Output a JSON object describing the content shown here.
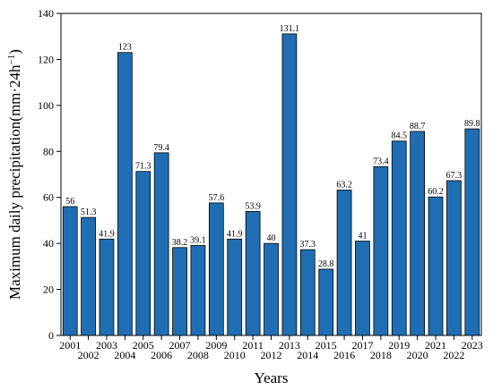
{
  "chart_data": {
    "type": "bar",
    "xlabel": "Years",
    "ylabel": "Maximum daily precipitation(mm·24h",
    "ylabel_sup": "−1",
    "ylabel_close": ")",
    "ylim": [
      0,
      140
    ],
    "yticks": [
      0,
      20,
      40,
      60,
      80,
      100,
      120,
      140
    ],
    "grid": false,
    "bar_color": "#1f6eb4",
    "categories": [
      "2001",
      "2002",
      "2003",
      "2004",
      "2005",
      "2006",
      "2007",
      "2008",
      "2009",
      "2010",
      "2011",
      "2012",
      "2013",
      "2014",
      "2015",
      "2016",
      "2017",
      "2018",
      "2019",
      "2020",
      "2021",
      "2022",
      "2023"
    ],
    "values": [
      56,
      51.3,
      41.9,
      123,
      71.3,
      79.4,
      38.2,
      39.1,
      57.6,
      41.9,
      53.9,
      40,
      131.1,
      37.3,
      28.8,
      63.2,
      41,
      73.4,
      84.5,
      88.7,
      60.2,
      67.3,
      89.8
    ],
    "value_labels": [
      "56",
      "51.3",
      "41.9",
      "123",
      "71.3",
      "79.4",
      "38.2",
      "39.1",
      "57.6",
      "41.9",
      "53.9",
      "40",
      "131.1",
      "37.3",
      "28.8",
      "63.2",
      "41",
      "73.4",
      "84.5",
      "88.7",
      "60.2",
      "67.3",
      "89.8"
    ]
  }
}
